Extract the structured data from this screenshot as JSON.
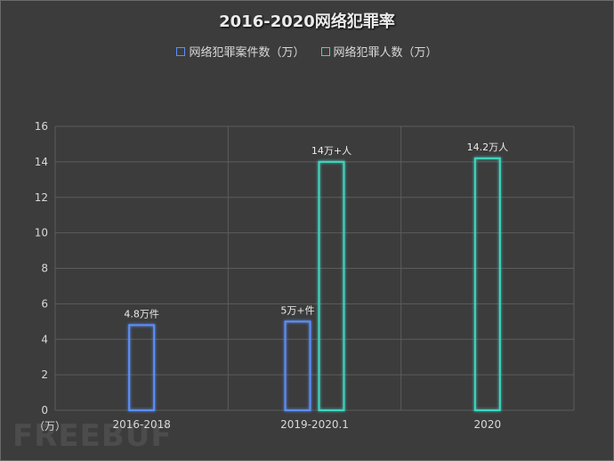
{
  "chart_data": {
    "type": "bar",
    "title": "2016-2020网络犯罪率",
    "categories": [
      "2016-2018",
      "2019-2020.1",
      "2020"
    ],
    "series": [
      {
        "name": "网络犯罪案件数（万）",
        "values": [
          4.8,
          5,
          null
        ],
        "labels": [
          "4.8万件",
          "5万+件",
          ""
        ],
        "color": "#5b8ff9"
      },
      {
        "name": "网络犯罪人数（万）",
        "values": [
          null,
          14,
          14.2
        ],
        "labels": [
          "",
          "14万+人",
          "14.2万人"
        ],
        "color": "#3fd6c0"
      }
    ],
    "yticks": [
      "0",
      "2",
      "4",
      "6",
      "8",
      "10",
      "12",
      "14",
      "16"
    ],
    "ylim": [
      0,
      16
    ],
    "ylabel": "（万）",
    "grid": true,
    "legend_position": "top"
  },
  "watermark": "FREEBUF"
}
